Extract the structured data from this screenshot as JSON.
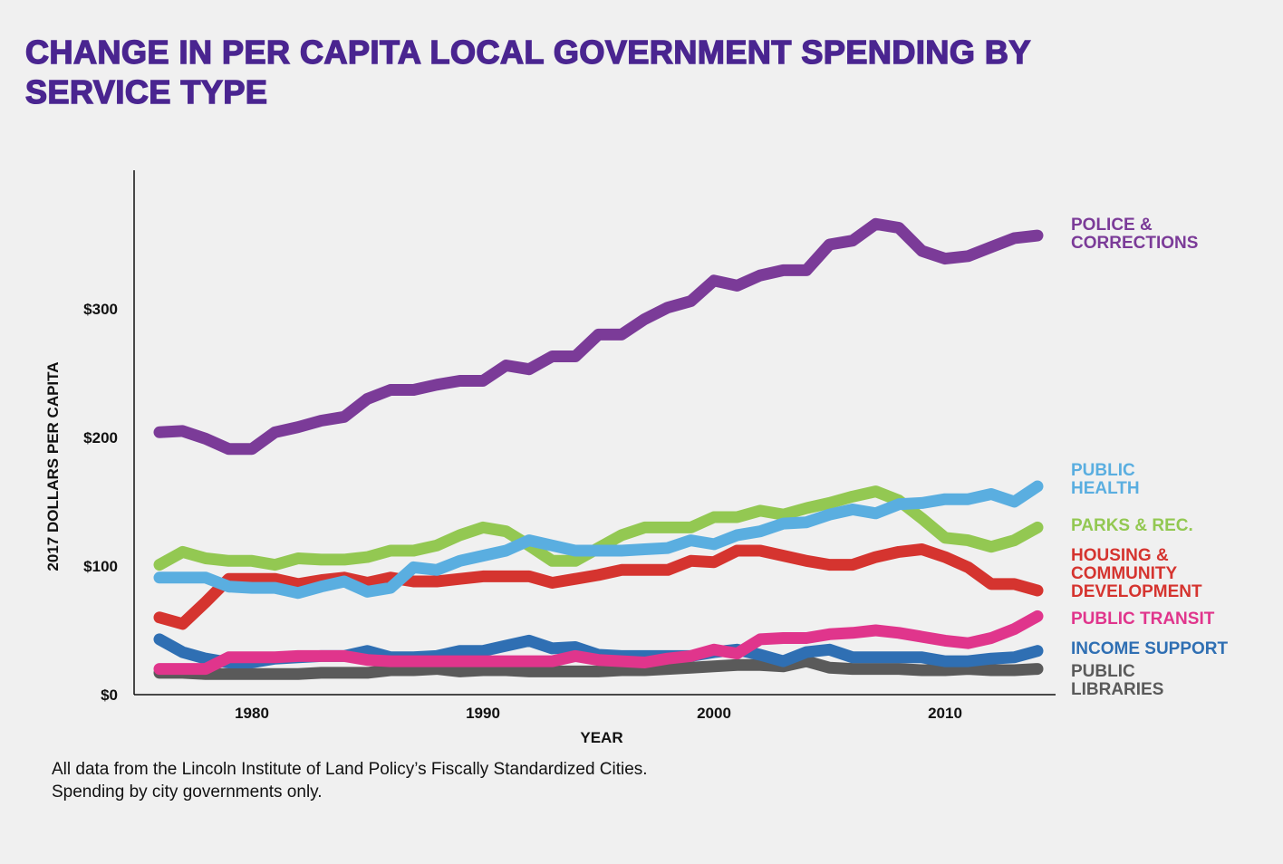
{
  "chart_data": {
    "type": "line",
    "title": "CHANGE IN PER CAPITA LOCAL GOVERNMENT SPENDING BY SERVICE TYPE",
    "xlabel": "YEAR",
    "ylabel": "2017 DOLLARS PER CAPITA",
    "xlim": [
      1976,
      2014
    ],
    "ylim": [
      0,
      400
    ],
    "xticks": [
      {
        "value": 1980,
        "label": "1980"
      },
      {
        "value": 1990,
        "label": "1990"
      },
      {
        "value": 2000,
        "label": "2000"
      },
      {
        "value": 2010,
        "label": "2010"
      }
    ],
    "yticks": [
      {
        "value": 0,
        "label": "$0"
      },
      {
        "value": 100,
        "label": "$100"
      },
      {
        "value": 200,
        "label": "$200"
      },
      {
        "value": 300,
        "label": "$300"
      }
    ],
    "grid": false,
    "legend": "right (direct labels)",
    "x_start": 1976,
    "series": [
      {
        "name": "POLICE & CORRECTIONS",
        "color": "#7b3b98",
        "values": [
          204,
          205,
          199,
          191,
          191,
          204,
          208,
          213,
          216,
          230,
          237,
          237,
          241,
          244,
          244,
          256,
          253,
          263,
          263,
          280,
          280,
          292,
          301,
          306,
          322,
          318,
          326,
          330,
          330,
          350,
          353,
          366,
          363,
          345,
          339,
          341,
          348,
          355,
          357
        ]
      },
      {
        "name": "PUBLIC HEALTH",
        "color": "#5aaee0",
        "values": [
          91,
          91,
          91,
          84,
          83,
          83,
          79,
          84,
          88,
          80,
          83,
          99,
          97,
          104,
          108,
          112,
          120,
          116,
          112,
          112,
          112,
          113,
          114,
          120,
          117,
          124,
          127,
          133,
          134,
          140,
          144,
          141,
          148,
          149,
          152,
          152,
          156,
          150,
          162
        ]
      },
      {
        "name": "PARKS & REC.",
        "color": "#93c852",
        "values": [
          101,
          111,
          106,
          104,
          104,
          101,
          106,
          105,
          105,
          107,
          112,
          112,
          116,
          124,
          130,
          127,
          116,
          104,
          104,
          114,
          124,
          130,
          130,
          130,
          138,
          138,
          143,
          140,
          145,
          149,
          154,
          158,
          151,
          137,
          122,
          120,
          115,
          120,
          130
        ]
      },
      {
        "name": "HOUSING & COMMUNITY DEVELOPMENT",
        "color": "#d5342f",
        "values": [
          60,
          55,
          72,
          90,
          90,
          90,
          86,
          89,
          91,
          87,
          91,
          88,
          88,
          90,
          92,
          92,
          92,
          87,
          90,
          93,
          97,
          97,
          97,
          104,
          103,
          112,
          112,
          108,
          104,
          101,
          101,
          107,
          111,
          113,
          107,
          99,
          86,
          86,
          81
        ]
      },
      {
        "name": "PUBLIC TRANSIT",
        "color": "#e0358c",
        "values": [
          20,
          20,
          20,
          29,
          29,
          29,
          30,
          30,
          30,
          27,
          26,
          26,
          26,
          26,
          26,
          26,
          26,
          26,
          30,
          27,
          26,
          25,
          28,
          30,
          35,
          32,
          43,
          44,
          44,
          47,
          48,
          50,
          48,
          45,
          42,
          40,
          44,
          51,
          61
        ]
      },
      {
        "name": "INCOME SUPPORT",
        "color": "#2f6fb3",
        "values": [
          43,
          33,
          28,
          25,
          25,
          28,
          29,
          30,
          30,
          34,
          29,
          29,
          30,
          34,
          34,
          38,
          42,
          36,
          37,
          31,
          30,
          30,
          30,
          30,
          33,
          35,
          31,
          26,
          33,
          35,
          29,
          29,
          29,
          29,
          26,
          26,
          28,
          29,
          34
        ]
      },
      {
        "name": "PUBLIC LIBRARIES",
        "color": "#5a5a5a",
        "values": [
          17,
          17,
          16,
          16,
          16,
          16,
          16,
          17,
          17,
          17,
          19,
          19,
          20,
          18,
          19,
          19,
          18,
          18,
          18,
          18,
          19,
          19,
          20,
          21,
          22,
          23,
          23,
          22,
          26,
          21,
          20,
          20,
          20,
          19,
          19,
          20,
          19,
          19,
          20
        ]
      }
    ]
  },
  "labels": {
    "police": "POLICE &\nCORRECTIONS",
    "health": "PUBLIC\nHEALTH",
    "parks": "PARKS & REC.",
    "housing": "HOUSING &\nCOMMUNITY\nDEVELOPMENT",
    "transit": "PUBLIC TRANSIT",
    "income": "INCOME SUPPORT",
    "libraries": "PUBLIC\nLIBRARIES"
  },
  "note_line1": "All data from the Lincoln Institute of  Land Policy’s Fiscally Standardized Cities.",
  "note_line2": "Spending by city governments only."
}
